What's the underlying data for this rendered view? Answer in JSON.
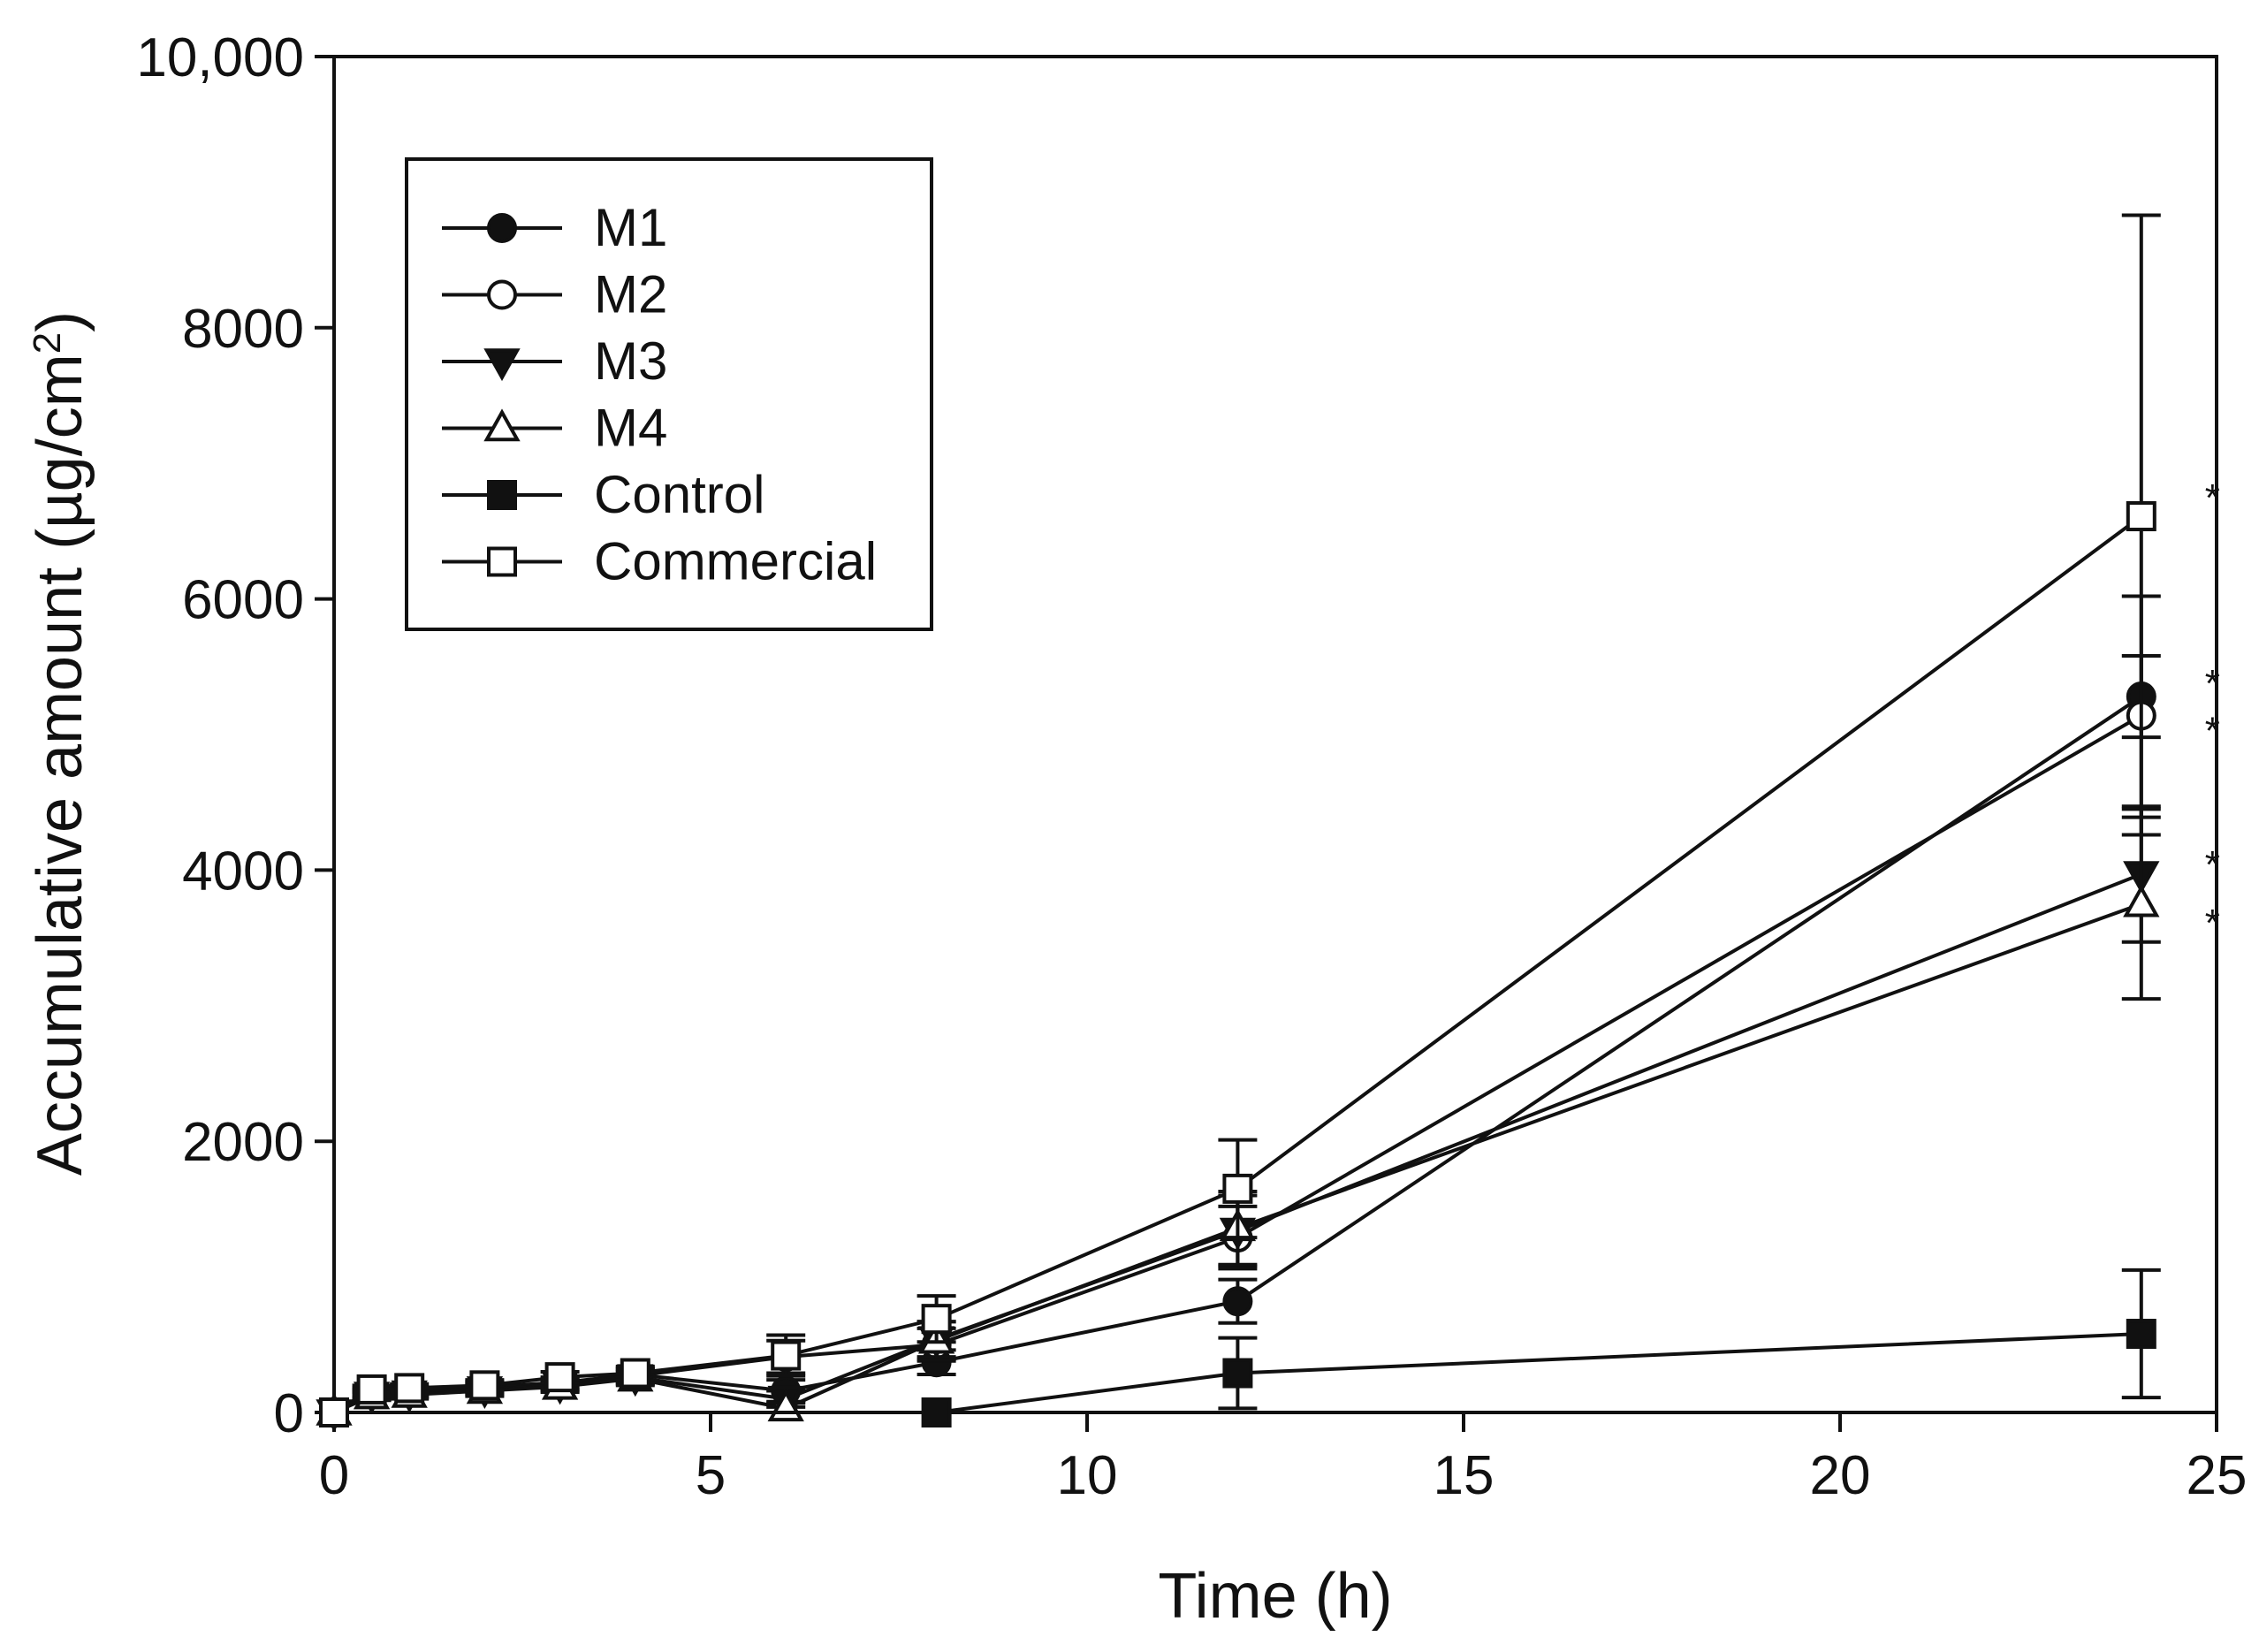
{
  "chart_data": {
    "type": "line",
    "title": "",
    "xlabel": "Time (h)",
    "ylabel_main": "Accumulative amount (µg/cm",
    "ylabel_sup": "2",
    "ylabel_close": ")",
    "xlim": [
      0,
      25
    ],
    "ylim": [
      0,
      10000
    ],
    "xticks": [
      0,
      5,
      10,
      15,
      20,
      25
    ],
    "xtick_labels": [
      "0",
      "5",
      "10",
      "15",
      "20",
      "25"
    ],
    "yticks": [
      0,
      2000,
      4000,
      6000,
      8000,
      10000
    ],
    "ytick_labels": [
      "0",
      "2000",
      "4000",
      "6000",
      "8000",
      "10,000"
    ],
    "grid": false,
    "legend_position": "top-left",
    "series": [
      {
        "name": "M1",
        "marker": "circle-filled",
        "x": [
          0,
          0.5,
          1,
          2,
          3,
          4,
          6,
          8,
          12,
          24
        ],
        "y": [
          0,
          150,
          160,
          190,
          220,
          280,
          160,
          370,
          820,
          5280
        ],
        "err": [
          0,
          30,
          30,
          40,
          40,
          50,
          80,
          90,
          160,
          300
        ],
        "star": "*"
      },
      {
        "name": "M2",
        "marker": "circle-open",
        "x": [
          0,
          0.5,
          1,
          2,
          3,
          4,
          6,
          8,
          12,
          24
        ],
        "y": [
          0,
          140,
          150,
          180,
          210,
          270,
          410,
          500,
          1290,
          5140
        ],
        "err": [
          0,
          30,
          30,
          40,
          40,
          50,
          120,
          120,
          230,
          880
        ],
        "star": "*"
      },
      {
        "name": "M3",
        "marker": "triangle-down-filled",
        "x": [
          0,
          0.5,
          1,
          2,
          3,
          4,
          6,
          8,
          12,
          24
        ],
        "y": [
          0,
          130,
          140,
          170,
          200,
          260,
          100,
          540,
          1340,
          3970
        ],
        "err": [
          0,
          30,
          30,
          40,
          40,
          50,
          60,
          130,
          260,
          500
        ],
        "star": "*"
      },
      {
        "name": "M4",
        "marker": "triangle-up-open",
        "x": [
          0,
          0.5,
          1,
          2,
          3,
          4,
          6,
          8,
          12,
          24
        ],
        "y": [
          0,
          120,
          130,
          160,
          190,
          250,
          30,
          530,
          1360,
          3750
        ],
        "err": [
          0,
          30,
          30,
          40,
          40,
          50,
          40,
          140,
          270,
          700
        ],
        "star": "*"
      },
      {
        "name": "Control",
        "marker": "square-filled",
        "x": [
          0,
          8,
          12,
          24
        ],
        "y": [
          0,
          0,
          290,
          580
        ],
        "err": [
          0,
          0,
          260,
          470
        ],
        "star": ""
      },
      {
        "name": "Commercial",
        "marker": "square-open",
        "x": [
          0,
          0.5,
          1,
          2,
          3,
          4,
          6,
          8,
          12,
          24
        ],
        "y": [
          0,
          170,
          180,
          200,
          260,
          290,
          420,
          690,
          1650,
          6610
        ],
        "err": [
          0,
          30,
          30,
          40,
          40,
          50,
          150,
          170,
          360,
          2220
        ],
        "star": "*"
      }
    ]
  }
}
